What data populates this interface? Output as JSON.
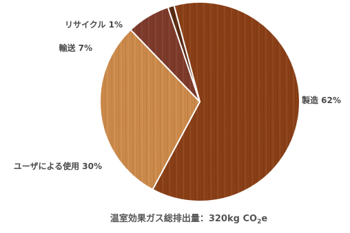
{
  "chart_data": {
    "type": "pie",
    "title": "",
    "slices": [
      {
        "label": "製造",
        "value": 62,
        "display": "製造 62%",
        "color": "#8a3f16"
      },
      {
        "label": "ユーザによる使用",
        "value": 30,
        "display": "ユーザによる使用 30%",
        "color": "#cc8a4a"
      },
      {
        "label": "輸送",
        "value": 7,
        "display": "輸送 7%",
        "color": "#7e3a2a"
      },
      {
        "label": "リサイクル",
        "value": 1,
        "display": "リサイクル 1%",
        "color": "#5a2a12"
      }
    ],
    "footer": {
      "prefix": "温室効果ガス総排出量：320kg CO",
      "subscript": "2",
      "suffix": "e"
    }
  }
}
